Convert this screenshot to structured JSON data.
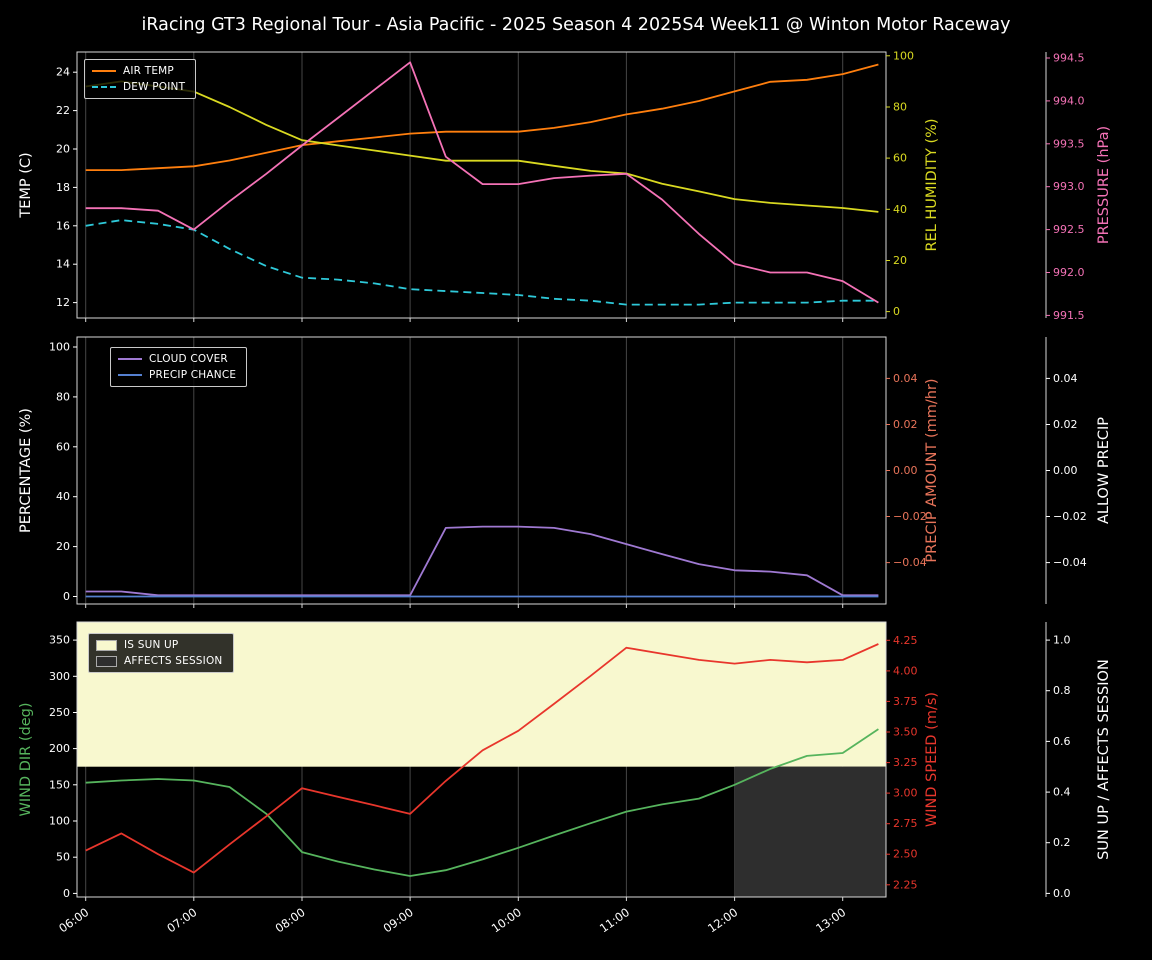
{
  "title": "iRacing GT3 Regional Tour - Asia Pacific - 2025 Season 4 2025S4 Week11 @ Winton Motor Raceway",
  "colors": {
    "background": "#000000",
    "foreground": "#ffffff",
    "grid": "#464646",
    "spine": "#d9d9d9",
    "air_temp": "#ff7f0e",
    "dew_point": "#2ec9d9",
    "humidity": "#d9d921",
    "pressure": "#f472b6",
    "cloud_cover": "#9f79d2",
    "precip_chance": "#5580d0",
    "precip_amount": "#e8745a",
    "wind_dir": "#56b45d",
    "wind_speed": "#e8362c",
    "sun_band": "#f8f8cf",
    "affects_band": "#2e2e2e"
  },
  "chart_data": [
    {
      "name": "temperature-panel",
      "type": "line",
      "xlim": [
        5.92,
        13.4
      ],
      "x_hours": [
        6,
        6.33,
        6.67,
        7,
        7.33,
        7.67,
        8,
        8.33,
        8.67,
        9,
        9.33,
        9.67,
        10,
        10.33,
        10.67,
        11,
        11.33,
        11.67,
        12,
        12.33,
        12.67,
        13,
        13.33
      ],
      "x_ticks": [
        {
          "value": 6,
          "label": "06:00"
        },
        {
          "value": 7,
          "label": "07:00"
        },
        {
          "value": 8,
          "label": "08:00"
        },
        {
          "value": 9,
          "label": "09:00"
        },
        {
          "value": 10,
          "label": "10:00"
        },
        {
          "value": 11,
          "label": "11:00"
        },
        {
          "value": 12,
          "label": "12:00"
        },
        {
          "value": 13,
          "label": "13:00"
        }
      ],
      "show_x_tick_labels": false,
      "axes": [
        {
          "id": "temp",
          "label": "TEMP (C)",
          "side": "left",
          "color": "#ffffff",
          "tick_color": "#ffffff",
          "lim": [
            11.2,
            25.05
          ],
          "ticks": [
            12,
            14,
            16,
            18,
            20,
            22,
            24
          ],
          "decimals": 0
        },
        {
          "id": "humidity",
          "label": "REL HUMIDITY (%)",
          "side": "right",
          "color": "#d9d921",
          "lim": [
            -2.5,
            101.5
          ],
          "ticks": [
            0,
            20,
            40,
            60,
            80,
            100
          ],
          "decimals": 0
        },
        {
          "id": "pressure",
          "label": "PRESSURE (hPa)",
          "side": "right2",
          "color": "#f472b6",
          "lim": [
            991.47,
            994.57
          ],
          "ticks": [
            991.5,
            992,
            992.5,
            993,
            993.5,
            994,
            994.5
          ],
          "decimals": 1
        }
      ],
      "series": [
        {
          "name": "AIR TEMP",
          "axis": "temp",
          "color": "#ff7f0e",
          "dash": false,
          "values": [
            18.9,
            18.9,
            19.0,
            19.1,
            19.4,
            19.8,
            20.2,
            20.4,
            20.6,
            20.8,
            20.9,
            20.9,
            20.9,
            21.1,
            21.4,
            21.8,
            22.1,
            22.5,
            23.0,
            23.5,
            23.6,
            23.9,
            24.4
          ]
        },
        {
          "name": "DEW POINT",
          "axis": "temp",
          "color": "#2ec9d9",
          "dash": true,
          "values": [
            16.0,
            16.3,
            16.1,
            15.8,
            14.8,
            13.9,
            13.3,
            13.2,
            13.0,
            12.7,
            12.6,
            12.5,
            12.4,
            12.2,
            12.1,
            11.9,
            11.9,
            11.9,
            12.0,
            12.0,
            12.0,
            12.1,
            12.1
          ]
        },
        {
          "name": "REL HUMIDITY",
          "axis": "humidity",
          "color": "#d9d921",
          "dash": false,
          "values": [
            88,
            90,
            88,
            86,
            80,
            73,
            67,
            65,
            63,
            61,
            59,
            59,
            59,
            57,
            55,
            54,
            50,
            47,
            44,
            42.5,
            41.5,
            40.5,
            39
          ]
        },
        {
          "name": "PRESSURE",
          "axis": "pressure",
          "color": "#f472b6",
          "dash": false,
          "values": [
            992.75,
            992.75,
            992.72,
            992.5,
            992.83,
            993.15,
            993.48,
            993.8,
            994.13,
            994.45,
            993.35,
            993.03,
            993.03,
            993.1,
            993.13,
            993.15,
            992.85,
            992.45,
            992.1,
            992.0,
            992.0,
            991.9,
            991.65
          ]
        }
      ],
      "legend": {
        "items": [
          {
            "label": "AIR TEMP",
            "swatch": "line",
            "color": "#ff7f0e"
          },
          {
            "label": "DEW POINT",
            "swatch": "dash",
            "color": "#2ec9d9"
          }
        ]
      }
    },
    {
      "name": "cloud-precip-panel",
      "type": "line",
      "xlim": [
        5.92,
        13.4
      ],
      "x_hours": [
        6,
        6.33,
        6.67,
        7,
        7.33,
        7.67,
        8,
        8.33,
        8.67,
        9,
        9.33,
        9.67,
        10,
        10.33,
        10.67,
        11,
        11.33,
        11.67,
        12,
        12.33,
        12.67,
        13,
        13.33
      ],
      "x_ticks": [
        {
          "value": 6,
          "label": "06:00"
        },
        {
          "value": 7,
          "label": "07:00"
        },
        {
          "value": 8,
          "label": "08:00"
        },
        {
          "value": 9,
          "label": "09:00"
        },
        {
          "value": 10,
          "label": "10:00"
        },
        {
          "value": 11,
          "label": "11:00"
        },
        {
          "value": 12,
          "label": "12:00"
        },
        {
          "value": 13,
          "label": "13:00"
        }
      ],
      "show_x_tick_labels": false,
      "axes": [
        {
          "id": "pct",
          "label": "PERCENTAGE (%)",
          "side": "left",
          "color": "#ffffff",
          "tick_color": "#ffffff",
          "lim": [
            -3,
            104
          ],
          "ticks": [
            0,
            20,
            40,
            60,
            80,
            100
          ],
          "decimals": 0
        },
        {
          "id": "amount",
          "label": "PRECIP AMOUNT (mm/hr)",
          "side": "right",
          "color": "#e8745a",
          "lim": [
            -0.058,
            0.058
          ],
          "ticks": [
            0.04,
            0.02,
            0,
            -0.02,
            -0.04
          ],
          "decimals": 2
        },
        {
          "id": "allow",
          "label": "ALLOW PRECIP",
          "side": "right2",
          "color": "#ffffff",
          "lim": [
            -0.058,
            0.058
          ],
          "ticks": [
            0.04,
            0.02,
            0,
            -0.02,
            -0.04
          ],
          "decimals": 2
        }
      ],
      "series": [
        {
          "name": "CLOUD COVER",
          "axis": "pct",
          "color": "#9f79d2",
          "dash": false,
          "values": [
            2,
            2,
            0.5,
            0.5,
            0.5,
            0.5,
            0.5,
            0.5,
            0.5,
            0.5,
            27.5,
            28,
            28,
            27.5,
            25,
            21,
            17,
            13,
            10.5,
            10,
            8.5,
            0.5,
            0.5
          ]
        },
        {
          "name": "PRECIP CHANCE",
          "axis": "pct",
          "color": "#5580d0",
          "dash": false,
          "values": [
            0,
            0,
            0,
            0,
            0,
            0,
            0,
            0,
            0,
            0,
            0,
            0,
            0,
            0,
            0,
            0,
            0,
            0,
            0,
            0,
            0,
            0,
            0
          ]
        }
      ],
      "legend": {
        "items": [
          {
            "label": "CLOUD COVER",
            "swatch": "line",
            "color": "#9f79d2"
          },
          {
            "label": "PRECIP CHANCE",
            "swatch": "line",
            "color": "#5580d0"
          }
        ]
      }
    },
    {
      "name": "wind-sun-panel",
      "type": "line",
      "xlim": [
        5.92,
        13.4
      ],
      "x_hours": [
        6,
        6.33,
        6.67,
        7,
        7.33,
        7.67,
        8,
        8.33,
        8.67,
        9,
        9.33,
        9.67,
        10,
        10.33,
        10.67,
        11,
        11.33,
        11.67,
        12,
        12.33,
        12.67,
        13,
        13.33
      ],
      "x_ticks": [
        {
          "value": 6,
          "label": "06:00"
        },
        {
          "value": 7,
          "label": "07:00"
        },
        {
          "value": 8,
          "label": "08:00"
        },
        {
          "value": 9,
          "label": "09:00"
        },
        {
          "value": 10,
          "label": "10:00"
        },
        {
          "value": 11,
          "label": "11:00"
        },
        {
          "value": 12,
          "label": "12:00"
        },
        {
          "value": 13,
          "label": "13:00"
        }
      ],
      "show_x_tick_labels": true,
      "axes": [
        {
          "id": "winddir",
          "label": "WIND DIR (deg)",
          "side": "left",
          "color": "#56b45d",
          "tick_color": "#ffffff",
          "lim": [
            -5,
            375
          ],
          "ticks": [
            0,
            50,
            100,
            150,
            200,
            250,
            300,
            350
          ],
          "decimals": 0
        },
        {
          "id": "windspeed",
          "label": "WIND SPEED (m/s)",
          "side": "right",
          "color": "#e8362c",
          "lim": [
            2.15,
            4.4
          ],
          "ticks": [
            2.25,
            2.5,
            2.75,
            3,
            3.25,
            3.5,
            3.75,
            4,
            4.25
          ],
          "decimals": 2
        },
        {
          "id": "sun",
          "label": "SUN UP / AFFECTS SESSION",
          "side": "right2",
          "color": "#ffffff",
          "lim": [
            -0.0143,
            1.0714
          ],
          "ticks": [
            0,
            0.2,
            0.4,
            0.6,
            0.8,
            1
          ],
          "decimals": 1
        }
      ],
      "bands": [
        {
          "name": "IS SUN UP",
          "axis": "sun",
          "color": "#f8f8cf",
          "x": [
            5.92,
            13.4
          ],
          "y": [
            0.5,
            1.0714
          ],
          "values": [
            1,
            1,
            1,
            1,
            1,
            1,
            1,
            1,
            1,
            1,
            1,
            1,
            1,
            1,
            1,
            1,
            1,
            1,
            1,
            1,
            1,
            1,
            1
          ]
        },
        {
          "name": "AFFECTS SESSION",
          "axis": "sun",
          "color": "#2e2e2e",
          "x": [
            12,
            13.4
          ],
          "y": [
            -0.0143,
            0.5
          ],
          "values": [
            0,
            0,
            0,
            0,
            0,
            0,
            0,
            0,
            0,
            0,
            0,
            0,
            0,
            0,
            0,
            0,
            0,
            0,
            1,
            1,
            1,
            1,
            1
          ]
        }
      ],
      "series": [
        {
          "name": "WIND DIR",
          "axis": "winddir",
          "color": "#56b45d",
          "dash": false,
          "values": [
            153,
            156,
            158,
            156,
            147,
            110,
            57,
            44,
            33,
            24,
            32,
            47,
            63,
            80,
            97,
            113,
            123,
            131,
            150,
            172,
            190,
            194,
            227
          ]
        },
        {
          "name": "WIND SPEED",
          "axis": "windspeed",
          "color": "#e8362c",
          "dash": false,
          "values": [
            2.53,
            2.67,
            2.5,
            2.35,
            2.58,
            2.81,
            3.04,
            2.97,
            2.9,
            2.83,
            3.1,
            3.35,
            3.51,
            3.73,
            3.96,
            4.19,
            4.14,
            4.09,
            4.06,
            4.09,
            4.07,
            4.09,
            4.22
          ]
        }
      ],
      "legend": {
        "items": [
          {
            "label": "IS SUN UP",
            "swatch": "patch",
            "color": "#f8f8cf"
          },
          {
            "label": "AFFECTS SESSION",
            "swatch": "patch",
            "color": "#2e2e2e"
          }
        ]
      }
    }
  ]
}
